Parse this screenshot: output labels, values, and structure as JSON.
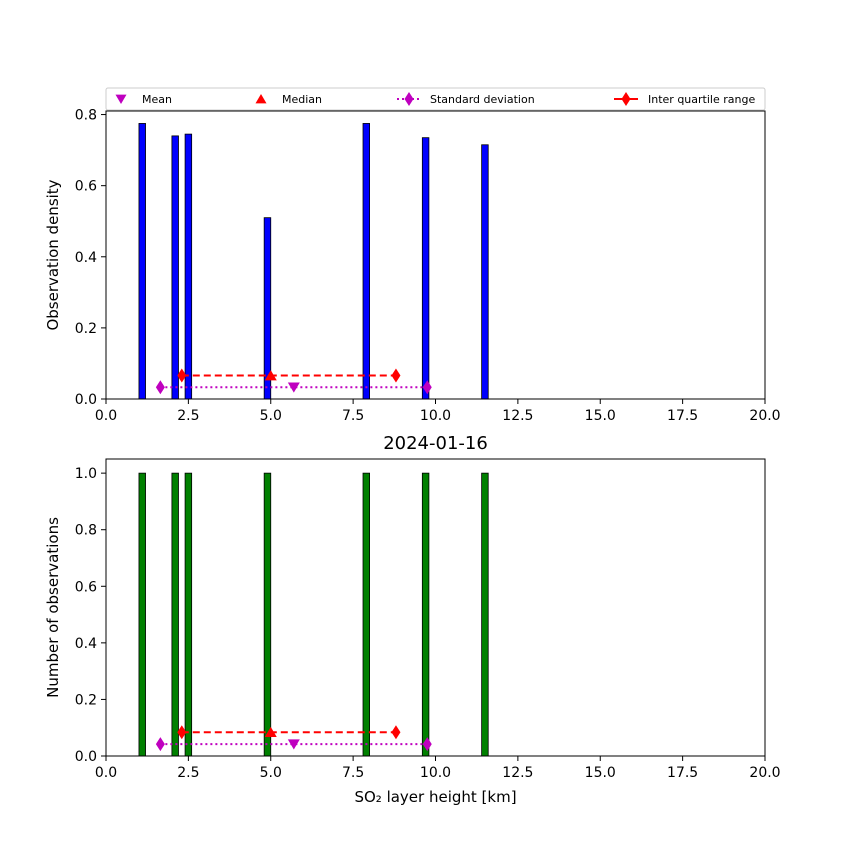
{
  "chart_data": [
    {
      "type": "bar",
      "title": "",
      "xlabel": "",
      "ylabel": "Observation density",
      "xlim": [
        0,
        20
      ],
      "ylim": [
        0,
        0.81
      ],
      "xticks": [
        "0.0",
        "2.5",
        "5.0",
        "7.5",
        "10.0",
        "12.5",
        "15.0",
        "17.5",
        "20.0"
      ],
      "yticks": [
        "0.0",
        "0.2",
        "0.4",
        "0.6",
        "0.8"
      ],
      "grid": false,
      "bar_color": "#0000ff",
      "bar_width": 0.2,
      "bars": [
        {
          "x": 1.1,
          "y": 0.775
        },
        {
          "x": 2.1,
          "y": 0.74
        },
        {
          "x": 2.5,
          "y": 0.745
        },
        {
          "x": 4.9,
          "y": 0.51
        },
        {
          "x": 7.9,
          "y": 0.775
        },
        {
          "x": 9.7,
          "y": 0.735
        },
        {
          "x": 11.5,
          "y": 0.715
        }
      ],
      "stats": {
        "mean": {
          "x": 5.7,
          "y": 0.033
        },
        "median": {
          "x": 5.0,
          "y": 0.066
        },
        "std": {
          "x": [
            1.65,
            9.75
          ],
          "y": 0.033
        },
        "iqr": {
          "x": [
            2.3,
            8.8
          ],
          "y": 0.066
        }
      },
      "legend": {
        "placement": "top",
        "entries": [
          {
            "label": "Mean",
            "marker": "triangle-down-icon",
            "color": "#bf00bf"
          },
          {
            "label": "Median",
            "marker": "triangle-up-icon",
            "color": "#ff0000"
          },
          {
            "label": "Standard deviation",
            "marker": "diamond-icon",
            "color": "#bf00bf",
            "line": "dotted"
          },
          {
            "label": "Inter quartile range",
            "marker": "diamond-icon",
            "color": "#ff0000",
            "line": "solid"
          }
        ]
      }
    },
    {
      "type": "bar",
      "title": "2024-01-16",
      "xlabel": "SO₂ layer height [km]",
      "ylabel": "Number of observations",
      "xlim": [
        0,
        20
      ],
      "ylim": [
        0,
        1.05
      ],
      "xticks": [
        "0.0",
        "2.5",
        "5.0",
        "7.5",
        "10.0",
        "12.5",
        "15.0",
        "17.5",
        "20.0"
      ],
      "yticks": [
        "0.0",
        "0.2",
        "0.4",
        "0.6",
        "0.8",
        "1.0"
      ],
      "grid": false,
      "bar_color": "#008000",
      "bar_width": 0.2,
      "bars": [
        {
          "x": 1.1,
          "y": 1.0
        },
        {
          "x": 2.1,
          "y": 1.0
        },
        {
          "x": 2.5,
          "y": 1.0
        },
        {
          "x": 4.9,
          "y": 1.0
        },
        {
          "x": 7.9,
          "y": 1.0
        },
        {
          "x": 9.7,
          "y": 1.0
        },
        {
          "x": 11.5,
          "y": 1.0
        }
      ],
      "stats": {
        "mean": {
          "x": 5.7,
          "y": 0.042
        },
        "median": {
          "x": 5.0,
          "y": 0.084
        },
        "std": {
          "x": [
            1.65,
            9.75
          ],
          "y": 0.042
        },
        "iqr": {
          "x": [
            2.3,
            8.8
          ],
          "y": 0.084
        }
      }
    }
  ]
}
